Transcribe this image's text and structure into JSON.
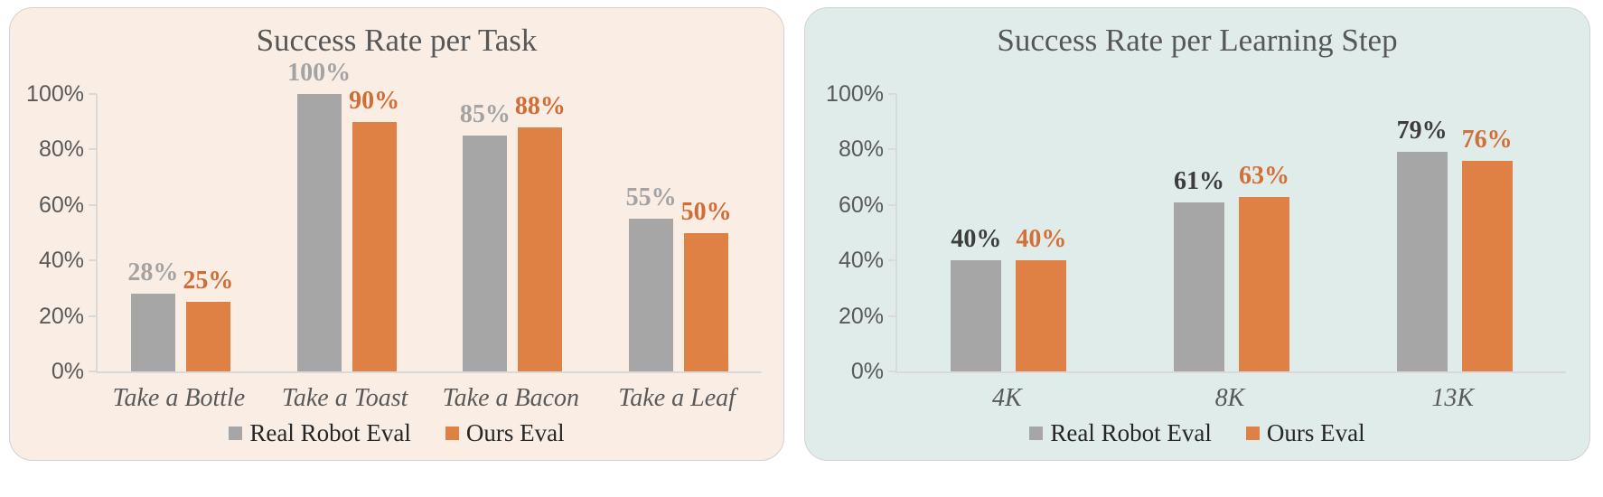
{
  "page": {
    "background": "#ffffff"
  },
  "chart_data": [
    {
      "type": "bar",
      "title": "Success Rate per Task",
      "categories": [
        "Take a Bottle",
        "Take a Toast",
        "Take a Bacon",
        "Take a Leaf"
      ],
      "series": [
        {
          "name": "Real Robot Eval",
          "values": [
            28,
            100,
            85,
            55
          ],
          "bar_color": "#a6a6a6",
          "value_label_color": "#a3a3a3"
        },
        {
          "name": "Ours Eval",
          "values": [
            25,
            90,
            88,
            50
          ],
          "bar_color": "#df8044",
          "value_label_color": "#cf6d35"
        }
      ],
      "value_label_suffix": "%",
      "y_ticks": [
        0,
        20,
        40,
        60,
        80,
        100
      ],
      "y_tick_suffix": "%",
      "ylim": [
        0,
        100
      ],
      "gridlines": false,
      "legend_position": "bottom",
      "legend_entries": [
        "Real Robot Eval",
        "Ours Eval"
      ],
      "panel_bg": "#faede4",
      "axis_color": "#d9d9d9"
    },
    {
      "type": "bar",
      "title": "Success Rate per Learning Step",
      "categories": [
        "4K",
        "8K",
        "13K"
      ],
      "series": [
        {
          "name": "Real Robot Eval",
          "values": [
            40,
            61,
            79
          ],
          "bar_color": "#a6a6a6",
          "value_label_color": "#3d3d3d"
        },
        {
          "name": "Ours Eval",
          "values": [
            40,
            63,
            76
          ],
          "bar_color": "#df8044",
          "value_label_color": "#d2703a"
        }
      ],
      "value_label_suffix": "%",
      "y_ticks": [
        0,
        20,
        40,
        60,
        80,
        100
      ],
      "y_tick_suffix": "%",
      "ylim": [
        0,
        100
      ],
      "gridlines": false,
      "legend_position": "bottom",
      "legend_entries": [
        "Real Robot Eval",
        "Ours Eval"
      ],
      "panel_bg": "#dfecea",
      "axis_color": "#d9d9d9"
    }
  ]
}
